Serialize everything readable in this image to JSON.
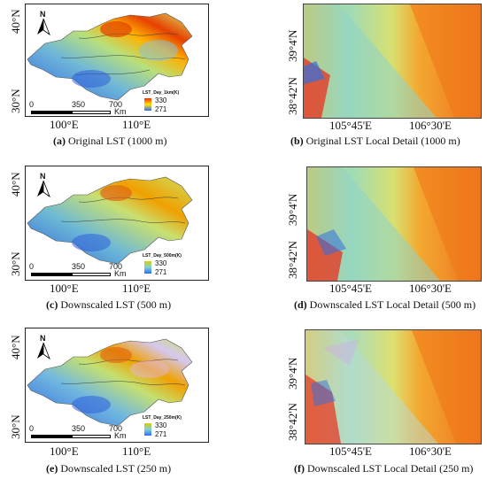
{
  "panels": [
    {
      "map": {
        "lat_labels": [
          "40°N",
          "30°N"
        ],
        "lon_labels": [
          "100°E",
          "110°E"
        ],
        "north_label": "N",
        "legend_title": "LST_Day_1km(K)",
        "legend_max": "330",
        "legend_min": "271",
        "legend_colors": [
          "#ff2a00",
          "#ffe600",
          "#2f6bff"
        ],
        "scale_labels": [
          "0",
          "350",
          "700"
        ],
        "scale_unit": "Km"
      },
      "caption_letter": "(a)",
      "caption_text": " Original LST (1000 m)"
    },
    {
      "map": {
        "lat_labels": [
          "40°N",
          "30°N"
        ],
        "lon_labels": [
          "100°E",
          "110°E"
        ],
        "north_label": "N",
        "legend_title": "LST_Day_500m(K)",
        "legend_max": "330",
        "legend_min": "271",
        "legend_colors": [
          "#d7d000",
          "#7fd1d8",
          "#2f6bff"
        ],
        "scale_labels": [
          "0",
          "350",
          "700"
        ],
        "scale_unit": "Km"
      },
      "caption_letter": "(c)",
      "caption_text": " Downscaled LST (500 m)"
    },
    {
      "map": {
        "lat_labels": [
          "40°N",
          "30°N"
        ],
        "lon_labels": [
          "100°E",
          "110°E"
        ],
        "north_label": "N",
        "legend_title": "LST_Day_250m(K)",
        "legend_max": "330",
        "legend_min": "271",
        "legend_colors": [
          "#d7d000",
          "#7fd1d8",
          "#2f6bff"
        ],
        "scale_labels": [
          "0",
          "350",
          "700"
        ],
        "scale_unit": "Km"
      },
      "caption_letter": "(e)",
      "caption_text": " Downscaled LST (250 m)"
    }
  ],
  "details": [
    {
      "lat_labels": [
        "39°4'N",
        "38°42'N"
      ],
      "lon_labels": [
        "105°45'E",
        "106°30'E"
      ],
      "caption_letter": "(b)",
      "caption_text": " Original LST Local Detail (1000 m)"
    },
    {
      "lat_labels": [
        "39°4'N",
        "38°42'N"
      ],
      "lon_labels": [
        "105°45'E",
        "106°30'E"
      ],
      "caption_letter": "(d)",
      "caption_text": " Downscaled LST Local Detail (500 m)"
    },
    {
      "lat_labels": [
        "39°4'N",
        "38°42'N"
      ],
      "lon_labels": [
        "105°45'E",
        "106°30'E"
      ],
      "caption_letter": "(f)",
      "caption_text": " Downscaled LST Local Detail (250 m)"
    }
  ]
}
